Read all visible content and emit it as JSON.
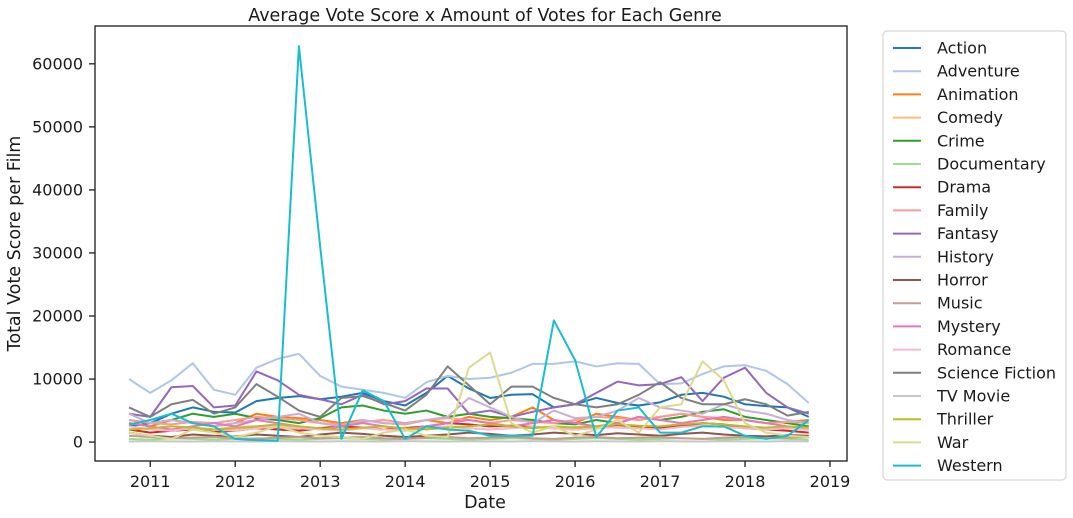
{
  "chart_data": {
    "type": "line",
    "title": "Average Vote Score x Amount of Votes for Each Genre",
    "xlabel": "Date",
    "ylabel": "Total Vote Score per Film",
    "xlim": [
      2010.35,
      2019.2
    ],
    "ylim": [
      -3000,
      66000
    ],
    "x_ticks": [
      2011,
      2012,
      2013,
      2014,
      2015,
      2016,
      2017,
      2018,
      2019
    ],
    "x_tick_labels": [
      "2011",
      "2012",
      "2013",
      "2014",
      "2015",
      "2016",
      "2017",
      "2018",
      "2019"
    ],
    "y_ticks": [
      0,
      10000,
      20000,
      30000,
      40000,
      50000,
      60000
    ],
    "y_tick_labels": [
      "0",
      "10000",
      "20000",
      "30000",
      "40000",
      "50000",
      "60000"
    ],
    "grid": false,
    "legend_position": "outside-right",
    "x": [
      2010.75,
      2011.0,
      2011.25,
      2011.5,
      2011.75,
      2012.0,
      2012.25,
      2012.5,
      2012.75,
      2013.0,
      2013.25,
      2013.5,
      2013.75,
      2014.0,
      2014.25,
      2014.5,
      2014.75,
      2015.0,
      2015.25,
      2015.5,
      2015.75,
      2016.0,
      2016.25,
      2016.5,
      2016.75,
      2017.0,
      2017.25,
      2017.5,
      2017.75,
      2018.0,
      2018.25,
      2018.5,
      2018.75
    ],
    "series": [
      {
        "name": "Action",
        "color": "#1f77b4",
        "values": [
          2500,
          3000,
          4500,
          5500,
          4800,
          4700,
          6500,
          7000,
          7300,
          6800,
          7200,
          7800,
          6500,
          5800,
          7800,
          10500,
          8500,
          7000,
          7500,
          7600,
          5500,
          6000,
          7000,
          6200,
          5800,
          6300,
          7500,
          7800,
          7200,
          6000,
          5700,
          5500,
          4000
        ]
      },
      {
        "name": "Adventure",
        "color": "#aec7e8",
        "values": [
          10000,
          7800,
          9800,
          12500,
          8300,
          7500,
          11800,
          13200,
          14000,
          10500,
          8800,
          8300,
          7800,
          7000,
          9500,
          10500,
          10000,
          10200,
          11000,
          12400,
          12400,
          12800,
          12000,
          12500,
          12400,
          9200,
          9300,
          10800,
          12000,
          12200,
          11300,
          9200,
          6200
        ]
      },
      {
        "name": "Animation",
        "color": "#ff7f0e",
        "values": [
          3000,
          2500,
          3500,
          3000,
          2500,
          3000,
          4500,
          4000,
          3800,
          3500,
          3000,
          3500,
          3000,
          2800,
          3500,
          3000,
          4000,
          3500,
          4000,
          5500,
          3500,
          3000,
          4500,
          4000,
          3500,
          4000,
          4500,
          4000,
          3500,
          3500,
          3000,
          3200,
          3500
        ]
      },
      {
        "name": "Comedy",
        "color": "#ffbb78",
        "values": [
          2000,
          2200,
          2500,
          2300,
          2000,
          2400,
          2500,
          2200,
          2000,
          2300,
          2500,
          2200,
          2000,
          2300,
          2500,
          2400,
          2200,
          2000,
          2300,
          2500,
          2200,
          2400,
          2500,
          2300,
          2200,
          2500,
          2800,
          2600,
          2400,
          2300,
          2200,
          2400,
          2000
        ]
      },
      {
        "name": "Crime",
        "color": "#2ca02c",
        "values": [
          3500,
          3000,
          3500,
          4500,
          4000,
          4500,
          3800,
          3500,
          3000,
          3800,
          5500,
          5800,
          5000,
          4500,
          5000,
          4000,
          4500,
          4000,
          3800,
          3500,
          3000,
          2800,
          3500,
          3000,
          4000,
          3500,
          4000,
          4800,
          5200,
          4000,
          3500,
          3000,
          2500
        ]
      },
      {
        "name": "Documentary",
        "color": "#98df8a",
        "values": [
          500,
          400,
          600,
          500,
          400,
          500,
          600,
          500,
          400,
          500,
          600,
          500,
          400,
          500,
          600,
          500,
          400,
          500,
          600,
          500,
          400,
          500,
          600,
          500,
          400,
          500,
          600,
          500,
          400,
          500,
          600,
          500,
          400
        ]
      },
      {
        "name": "Drama",
        "color": "#d62728",
        "values": [
          2000,
          1500,
          1800,
          2000,
          1600,
          1800,
          2200,
          2000,
          1800,
          2200,
          2500,
          2300,
          2000,
          2200,
          2500,
          3000,
          2800,
          2500,
          2600,
          2400,
          2200,
          2000,
          2300,
          2500,
          2400,
          2200,
          2600,
          3000,
          2800,
          2200,
          2000,
          1800,
          1500
        ]
      },
      {
        "name": "Family",
        "color": "#ff9896",
        "values": [
          3500,
          3000,
          2800,
          3200,
          3000,
          3500,
          4000,
          3800,
          3500,
          3000,
          2800,
          3200,
          3500,
          3000,
          3500,
          3800,
          3500,
          3000,
          3500,
          3200,
          3000,
          3500,
          4000,
          3800,
          3500,
          4000,
          4500,
          4000,
          3800,
          3500,
          3000,
          3200,
          3000
        ]
      },
      {
        "name": "Fantasy",
        "color": "#9467bd",
        "values": [
          4500,
          4000,
          8700,
          8900,
          5500,
          5800,
          11200,
          9800,
          7500,
          6800,
          6000,
          7500,
          6000,
          6500,
          8500,
          8500,
          4500,
          5000,
          4000,
          4800,
          5500,
          6000,
          7800,
          9600,
          9000,
          9200,
          10300,
          6500,
          10200,
          11800,
          7800,
          5500,
          4500
        ]
      },
      {
        "name": "History",
        "color": "#c5b0d5",
        "values": [
          4500,
          3000,
          3500,
          3000,
          2500,
          3000,
          3500,
          4000,
          4500,
          3000,
          2500,
          3500,
          3000,
          2800,
          3500,
          4000,
          7000,
          5500,
          4000,
          3000,
          5000,
          3800,
          4000,
          5000,
          7000,
          5500,
          5000,
          4500,
          6000,
          5000,
          4500,
          3500,
          3000
        ]
      },
      {
        "name": "Horror",
        "color": "#8c564b",
        "values": [
          1500,
          1000,
          800,
          1200,
          1000,
          900,
          1200,
          1000,
          800,
          1200,
          1500,
          1300,
          1000,
          800,
          1000,
          1200,
          1500,
          1300,
          1000,
          1200,
          1500,
          1300,
          1100,
          1400,
          1200,
          1000,
          1300,
          1500,
          1200,
          1000,
          900,
          1100,
          1000
        ]
      },
      {
        "name": "Music",
        "color": "#c49c94",
        "values": [
          1000,
          800,
          600,
          700,
          800,
          600,
          500,
          700,
          800,
          600,
          700,
          800,
          600,
          500,
          700,
          800,
          600,
          700,
          800,
          600,
          500,
          700,
          800,
          600,
          700,
          800,
          600,
          500,
          700,
          800,
          600,
          700,
          800
        ]
      },
      {
        "name": "Mystery",
        "color": "#e377c2",
        "values": [
          3000,
          2500,
          2000,
          2500,
          3000,
          2500,
          3500,
          3000,
          2500,
          2000,
          2500,
          3000,
          2500,
          2000,
          2500,
          3000,
          3500,
          3000,
          2500,
          3000,
          3500,
          3000,
          2500,
          3000,
          4000,
          3500,
          3000,
          3500,
          4000,
          3500,
          3000,
          2500,
          2000
        ]
      },
      {
        "name": "Romance",
        "color": "#f7b6d2",
        "values": [
          2500,
          2000,
          1800,
          2200,
          2000,
          1800,
          2200,
          2500,
          2200,
          2000,
          1800,
          2200,
          2000,
          1800,
          2200,
          2500,
          2200,
          2000,
          2200,
          2400,
          2200,
          2000,
          2200,
          2400,
          2200,
          2000,
          2400,
          2600,
          2400,
          2200,
          2000,
          2200,
          2000
        ]
      },
      {
        "name": "Science Fiction",
        "color": "#7f7f7f",
        "values": [
          5500,
          4000,
          6000,
          6700,
          4500,
          5500,
          9200,
          7200,
          5000,
          4000,
          7000,
          7300,
          6200,
          5000,
          7500,
          12000,
          9000,
          6000,
          8800,
          8800,
          7000,
          6000,
          5500,
          6000,
          7500,
          9500,
          7000,
          6000,
          6000,
          6800,
          6000,
          4200,
          4800
        ]
      },
      {
        "name": "TV Movie",
        "color": "#c7c7c7",
        "values": [
          100,
          150,
          120,
          100,
          130,
          110,
          100,
          150,
          120,
          100,
          130,
          110,
          100,
          150,
          120,
          100,
          130,
          110,
          100,
          150,
          120,
          100,
          130,
          110,
          100,
          150,
          120,
          100,
          130,
          110,
          100,
          150,
          120
        ]
      },
      {
        "name": "Thriller",
        "color": "#bcbd22",
        "values": [
          2000,
          2200,
          2500,
          2300,
          2000,
          2200,
          2500,
          2800,
          2500,
          2200,
          2000,
          2300,
          2500,
          2200,
          2000,
          2300,
          2500,
          2800,
          2500,
          2200,
          2500,
          2300,
          2500,
          2800,
          2600,
          2500,
          2800,
          3000,
          2800,
          2500,
          2300,
          2500,
          2300
        ]
      },
      {
        "name": "War",
        "color": "#dbdb8d",
        "values": [
          1500,
          1000,
          500,
          2000,
          1500,
          800,
          1500,
          2500,
          1500,
          1000,
          800,
          500,
          1500,
          2000,
          1000,
          800,
          11800,
          14200,
          3000,
          1500,
          2500,
          1000,
          2000,
          3500,
          1500,
          5500,
          6000,
          12800,
          9800,
          3000,
          1500,
          1000,
          800
        ]
      },
      {
        "name": "Western",
        "color": "#17becf",
        "values": [
          2800,
          3500,
          4500,
          3000,
          2500,
          500,
          300,
          200,
          62800,
          31000,
          500,
          8200,
          6500,
          500,
          2500,
          2000,
          1800,
          1000,
          1000,
          1000,
          19300,
          13000,
          800,
          5000,
          5500,
          1500,
          1500,
          2500,
          2500,
          1000,
          500,
          1000,
          3500
        ]
      }
    ]
  }
}
